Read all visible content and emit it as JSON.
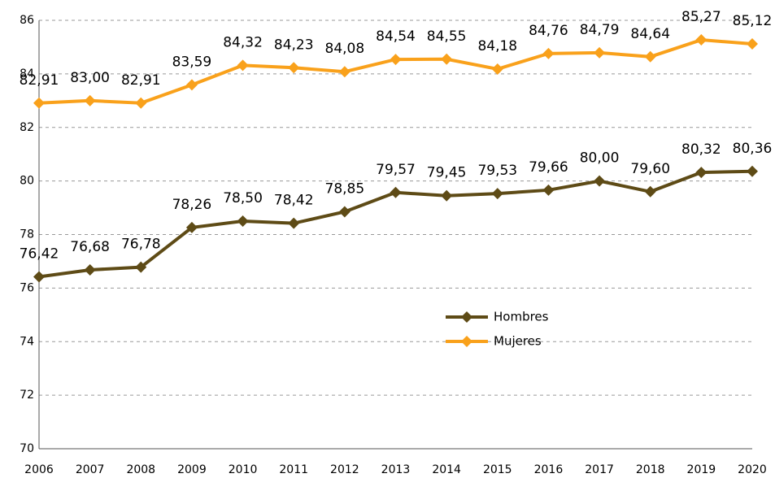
{
  "chart_data": {
    "type": "line",
    "categories": [
      "2006",
      "2007",
      "2008",
      "2009",
      "2010",
      "2011",
      "2012",
      "2013",
      "2014",
      "2015",
      "2016",
      "2017",
      "2018",
      "2019",
      "2020"
    ],
    "series": [
      {
        "name": "Hombres",
        "color": "#5e4b16",
        "values": [
          76.42,
          76.68,
          76.78,
          78.26,
          78.5,
          78.42,
          78.85,
          79.57,
          79.45,
          79.53,
          79.66,
          80.0,
          79.6,
          80.32,
          80.36
        ],
        "value_labels": [
          "76,42",
          "76,68",
          "76,78",
          "78,26",
          "78,50",
          "78,42",
          "78,85",
          "79,57",
          "79,45",
          "79,53",
          "79,66",
          "80,00",
          "79,60",
          "80,32",
          "80,36"
        ]
      },
      {
        "name": "Mujeres",
        "color": "#f9a11b",
        "values": [
          82.91,
          83.0,
          82.91,
          83.59,
          84.32,
          84.23,
          84.08,
          84.54,
          84.55,
          84.18,
          84.76,
          84.79,
          84.64,
          85.27,
          85.12
        ],
        "value_labels": [
          "82,91",
          "83,00",
          "82,91",
          "83,59",
          "84,32",
          "84,23",
          "84,08",
          "84,54",
          "84,55",
          "84,18",
          "84,76",
          "84,79",
          "84,64",
          "85,27",
          "85,12"
        ]
      }
    ],
    "ylim": [
      70,
      86
    ],
    "yticks": [
      70,
      72,
      74,
      76,
      78,
      80,
      82,
      84,
      86
    ],
    "grid": true
  }
}
